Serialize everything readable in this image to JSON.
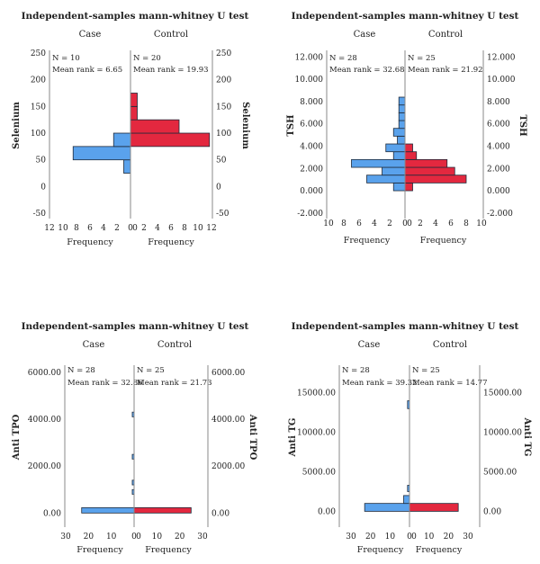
{
  "chart_data": [
    {
      "type": "bar",
      "subtype": "population-pyramid-histogram",
      "title": "Independent-samples mann-whitney U test",
      "left_header": "Case",
      "right_header": "Control",
      "left_stats": {
        "n": "N = 10",
        "mean_rank": "Mean rank = 6.65"
      },
      "right_stats": {
        "n": "N = 20",
        "mean_rank": "Mean rank = 19.93"
      },
      "ylabel": "Selenium",
      "xlabel_left": "Frequency",
      "xlabel_right": "Frequency",
      "ylim": [
        -60,
        255
      ],
      "yticks": [
        -50,
        0,
        50,
        100,
        150,
        200,
        250
      ],
      "ytick_labels": [
        "-50",
        "0",
        "50",
        "100",
        "150",
        "200",
        "250"
      ],
      "xlim": [
        0,
        12
      ],
      "xticks_left": [
        12,
        10,
        8,
        6,
        4,
        2,
        0
      ],
      "xticks_right": [
        0,
        2,
        4,
        6,
        8,
        10,
        12
      ],
      "case_bins": [
        {
          "from": 25,
          "to": 50,
          "count": 1
        },
        {
          "from": 50,
          "to": 75,
          "count": 8.5
        },
        {
          "from": 75,
          "to": 100,
          "count": 2.5
        }
      ],
      "control_bins": [
        {
          "from": 75,
          "to": 100,
          "count": 11.7
        },
        {
          "from": 100,
          "to": 125,
          "count": 7.2
        },
        {
          "from": 125,
          "to": 150,
          "count": 1
        },
        {
          "from": 150,
          "to": 175,
          "count": 1
        }
      ]
    },
    {
      "type": "bar",
      "subtype": "population-pyramid-histogram",
      "title": "Independent-samples mann-whitney U test",
      "left_header": "Case",
      "right_header": "Control",
      "left_stats": {
        "n": "N = 28",
        "mean_rank": "Mean rank = 32.68"
      },
      "right_stats": {
        "n": "N = 25",
        "mean_rank": "Mean rank = 21.92"
      },
      "ylabel": "TSH",
      "xlabel_left": "Frequency",
      "xlabel_right": "Frequency",
      "ylim": [
        -2500,
        12600
      ],
      "yticks": [
        -2000,
        0,
        2000,
        4000,
        6000,
        8000,
        10000,
        12000
      ],
      "ytick_labels": [
        "-2.000",
        "0.000",
        "2.000",
        "4.000",
        "6.000",
        "8.000",
        "10.000",
        "12.000"
      ],
      "xlim": [
        0,
        10
      ],
      "xticks_left": [
        10,
        8,
        6,
        4,
        2,
        0
      ],
      "xticks_right": [
        0,
        2,
        4,
        6,
        8,
        10
      ],
      "case_bins": [
        {
          "from": 0,
          "to": 700,
          "count": 1.5
        },
        {
          "from": 700,
          "to": 1400,
          "count": 5
        },
        {
          "from": 1400,
          "to": 2100,
          "count": 3
        },
        {
          "from": 2100,
          "to": 2800,
          "count": 7
        },
        {
          "from": 2800,
          "to": 3500,
          "count": 1.5
        },
        {
          "from": 3500,
          "to": 4200,
          "count": 2.5
        },
        {
          "from": 4200,
          "to": 4900,
          "count": 1
        },
        {
          "from": 4900,
          "to": 5600,
          "count": 1.5
        },
        {
          "from": 5600,
          "to": 6300,
          "count": 0.8
        },
        {
          "from": 6300,
          "to": 7000,
          "count": 0.8
        },
        {
          "from": 7000,
          "to": 7700,
          "count": 0.8
        },
        {
          "from": 7700,
          "to": 8400,
          "count": 0.8
        }
      ],
      "control_bins": [
        {
          "from": 0,
          "to": 700,
          "count": 1
        },
        {
          "from": 700,
          "to": 1400,
          "count": 8
        },
        {
          "from": 1400,
          "to": 2100,
          "count": 6.5
        },
        {
          "from": 2100,
          "to": 2800,
          "count": 5.5
        },
        {
          "from": 2800,
          "to": 3500,
          "count": 1.5
        },
        {
          "from": 3500,
          "to": 4200,
          "count": 1
        }
      ]
    },
    {
      "type": "bar",
      "subtype": "population-pyramid-histogram",
      "title": "Independent-samples mann-whitney U test",
      "left_header": "Case",
      "right_header": "Control",
      "left_stats": {
        "n": "N = 28",
        "mean_rank": "Mean rank = 32.86"
      },
      "right_stats": {
        "n": "N = 25",
        "mean_rank": "Mean rank = 21.73"
      },
      "ylabel": "Anti TPO",
      "xlabel_left": "Frequency",
      "xlabel_right": "Frequency",
      "ylim": [
        -600,
        6300
      ],
      "yticks": [
        0,
        2000,
        4000,
        6000
      ],
      "ytick_labels": [
        "0.00",
        "2000.00",
        "4000.00",
        "6000.00"
      ],
      "xlim": [
        0,
        30
      ],
      "xticks_left": [
        30,
        20,
        10,
        0
      ],
      "xticks_right": [
        0,
        10,
        20,
        30
      ],
      "case_bins": [
        {
          "from": 0,
          "to": 230,
          "count": 23
        },
        {
          "from": 800,
          "to": 1000,
          "count": 0.8
        },
        {
          "from": 1200,
          "to": 1400,
          "count": 0.8
        },
        {
          "from": 2300,
          "to": 2500,
          "count": 0.8
        },
        {
          "from": 4100,
          "to": 4300,
          "count": 0.8
        }
      ],
      "control_bins": [
        {
          "from": 0,
          "to": 230,
          "count": 25
        }
      ]
    },
    {
      "type": "bar",
      "subtype": "population-pyramid-histogram",
      "title": "Independent-samples mann-whitney U test",
      "left_header": "Case",
      "right_header": "Control",
      "left_stats": {
        "n": "N = 28",
        "mean_rank": "Mean rank = 39.32"
      },
      "right_stats": {
        "n": "N = 25",
        "mean_rank": "Mean rank = 14.77"
      },
      "ylabel": "Anti TG",
      "xlabel_left": "Frequency",
      "xlabel_right": "Frequency",
      "ylim": [
        -2000,
        18500
      ],
      "yticks": [
        0,
        5000,
        10000,
        15000
      ],
      "ytick_labels": [
        "0.00",
        "5000.00",
        "10000.00",
        "15000.00"
      ],
      "xlim": [
        0,
        30
      ],
      "xticks_left": [
        30,
        20,
        10,
        0
      ],
      "xticks_right": [
        0,
        10,
        20,
        30
      ],
      "case_bins": [
        {
          "from": 0,
          "to": 1000,
          "count": 23
        },
        {
          "from": 1000,
          "to": 2000,
          "count": 3
        },
        {
          "from": 2500,
          "to": 3300,
          "count": 1
        },
        {
          "from": 13000,
          "to": 14000,
          "count": 1
        }
      ],
      "control_bins": [
        {
          "from": 0,
          "to": 1000,
          "count": 25
        }
      ]
    }
  ],
  "colors": {
    "case": "#5aa2ec",
    "control": "#e3283f",
    "axis": "#888888",
    "bar_edge": "#1f2a3a"
  }
}
